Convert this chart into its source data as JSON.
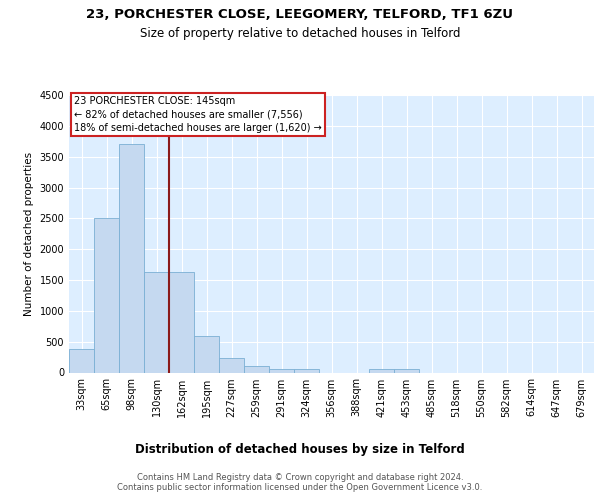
{
  "title1": "23, PORCHESTER CLOSE, LEEGOMERY, TELFORD, TF1 6ZU",
  "title2": "Size of property relative to detached houses in Telford",
  "xlabel": "Distribution of detached houses by size in Telford",
  "ylabel": "Number of detached properties",
  "categories": [
    "33sqm",
    "65sqm",
    "98sqm",
    "130sqm",
    "162sqm",
    "195sqm",
    "227sqm",
    "259sqm",
    "291sqm",
    "324sqm",
    "356sqm",
    "388sqm",
    "421sqm",
    "453sqm",
    "485sqm",
    "518sqm",
    "550sqm",
    "582sqm",
    "614sqm",
    "647sqm",
    "679sqm"
  ],
  "values": [
    375,
    2500,
    3700,
    1625,
    1625,
    600,
    240,
    105,
    60,
    55,
    0,
    0,
    55,
    55,
    0,
    0,
    0,
    0,
    0,
    0,
    0
  ],
  "bar_color": "#c5d9f0",
  "bar_edge_color": "#7aafd4",
  "vline_color": "#8b1a1a",
  "vline_pos": 3.5,
  "annotation_text": "23 PORCHESTER CLOSE: 145sqm\n← 82% of detached houses are smaller (7,556)\n18% of semi-detached houses are larger (1,620) →",
  "annotation_box_color": "#ffffff",
  "annotation_box_edge": "#cc2222",
  "ylim": [
    0,
    4500
  ],
  "yticks": [
    0,
    500,
    1000,
    1500,
    2000,
    2500,
    3000,
    3500,
    4000,
    4500
  ],
  "footer": "Contains HM Land Registry data © Crown copyright and database right 2024.\nContains public sector information licensed under the Open Government Licence v3.0.",
  "bg_color": "#ddeeff",
  "title1_fontsize": 9.5,
  "title2_fontsize": 8.5,
  "ylabel_fontsize": 7.5,
  "xlabel_fontsize": 8.5,
  "tick_fontsize": 7,
  "footer_fontsize": 6,
  "footer_color": "#555555"
}
